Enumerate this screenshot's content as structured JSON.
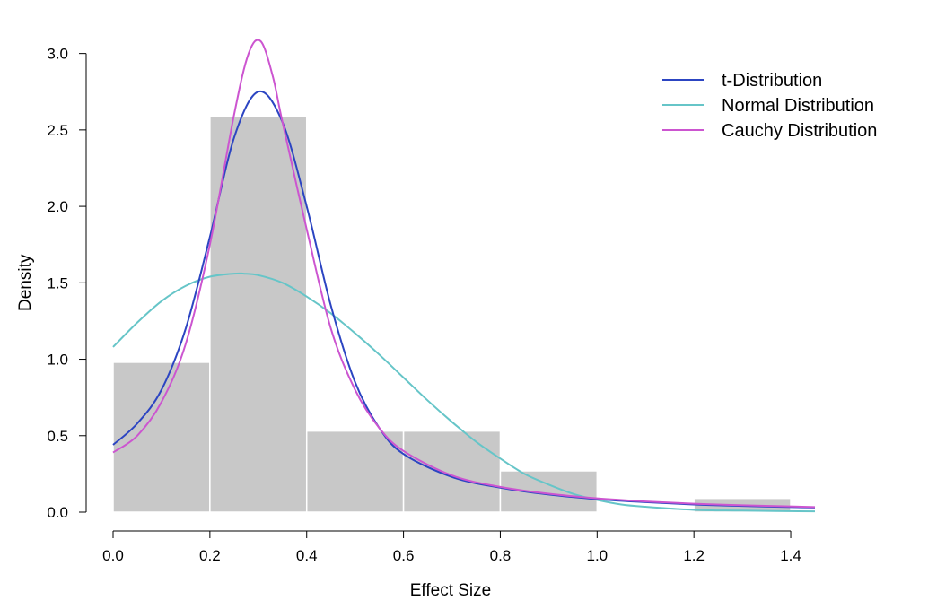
{
  "chart_data": {
    "type": "histogram",
    "title": "",
    "xlabel": "Effect Size",
    "ylabel": "Density",
    "xlim": [
      0,
      1.45
    ],
    "ylim": [
      0,
      3.08
    ],
    "xticks": [
      0.0,
      0.2,
      0.4,
      0.6,
      0.8,
      1.0,
      1.2,
      1.4
    ],
    "xtick_labels": [
      "0.0",
      "0.2",
      "0.4",
      "0.6",
      "0.8",
      "1.0",
      "1.2",
      "1.4"
    ],
    "yticks": [
      0.0,
      0.5,
      1.0,
      1.5,
      2.0,
      2.5,
      3.0
    ],
    "ytick_labels": [
      "0.0",
      "0.5",
      "1.0",
      "1.5",
      "2.0",
      "2.5",
      "3.0"
    ],
    "grid": false,
    "legend_position": "top-right",
    "bars": [
      {
        "x0": 0.0,
        "x1": 0.2,
        "density": 0.98
      },
      {
        "x0": 0.2,
        "x1": 0.4,
        "density": 2.59
      },
      {
        "x0": 0.4,
        "x1": 0.6,
        "density": 0.53
      },
      {
        "x0": 0.6,
        "x1": 0.8,
        "density": 0.53
      },
      {
        "x0": 0.8,
        "x1": 1.0,
        "density": 0.27
      },
      {
        "x0": 1.0,
        "x1": 1.2,
        "density": 0.0
      },
      {
        "x0": 1.2,
        "x1": 1.4,
        "density": 0.09
      }
    ],
    "bar_color": "#c8c8c8",
    "series": [
      {
        "name": "t-Distribution",
        "color": "#2c45c2",
        "x": [
          0.0,
          0.05,
          0.1,
          0.15,
          0.2,
          0.25,
          0.3,
          0.35,
          0.4,
          0.45,
          0.5,
          0.55,
          0.6,
          0.7,
          0.8,
          0.9,
          1.0,
          1.1,
          1.2,
          1.3,
          1.45
        ],
        "y": [
          0.44,
          0.58,
          0.8,
          1.2,
          1.8,
          2.45,
          2.75,
          2.55,
          2.0,
          1.35,
          0.85,
          0.55,
          0.38,
          0.23,
          0.16,
          0.115,
          0.085,
          0.065,
          0.05,
          0.04,
          0.03
        ]
      },
      {
        "name": "Normal Distribution",
        "color": "#66c5c8",
        "x": [
          0.0,
          0.05,
          0.1,
          0.15,
          0.2,
          0.25,
          0.27,
          0.3,
          0.35,
          0.4,
          0.45,
          0.5,
          0.55,
          0.6,
          0.65,
          0.7,
          0.75,
          0.8,
          0.85,
          0.9,
          0.95,
          1.0,
          1.05,
          1.1,
          1.2,
          1.3,
          1.45
        ],
        "y": [
          1.08,
          1.24,
          1.38,
          1.48,
          1.54,
          1.56,
          1.56,
          1.55,
          1.5,
          1.41,
          1.3,
          1.17,
          1.03,
          0.88,
          0.73,
          0.59,
          0.46,
          0.35,
          0.25,
          0.18,
          0.12,
          0.08,
          0.05,
          0.035,
          0.015,
          0.01,
          0.005
        ]
      },
      {
        "name": "Cauchy Distribution",
        "color": "#cc55d0",
        "x": [
          0.0,
          0.05,
          0.1,
          0.15,
          0.2,
          0.25,
          0.28,
          0.305,
          0.33,
          0.35,
          0.4,
          0.45,
          0.5,
          0.55,
          0.6,
          0.7,
          0.8,
          0.9,
          1.0,
          1.1,
          1.2,
          1.3,
          1.45
        ],
        "y": [
          0.39,
          0.5,
          0.72,
          1.1,
          1.75,
          2.6,
          3.0,
          3.08,
          2.85,
          2.55,
          1.85,
          1.2,
          0.8,
          0.55,
          0.4,
          0.24,
          0.165,
          0.12,
          0.09,
          0.07,
          0.055,
          0.045,
          0.033
        ]
      }
    ]
  }
}
